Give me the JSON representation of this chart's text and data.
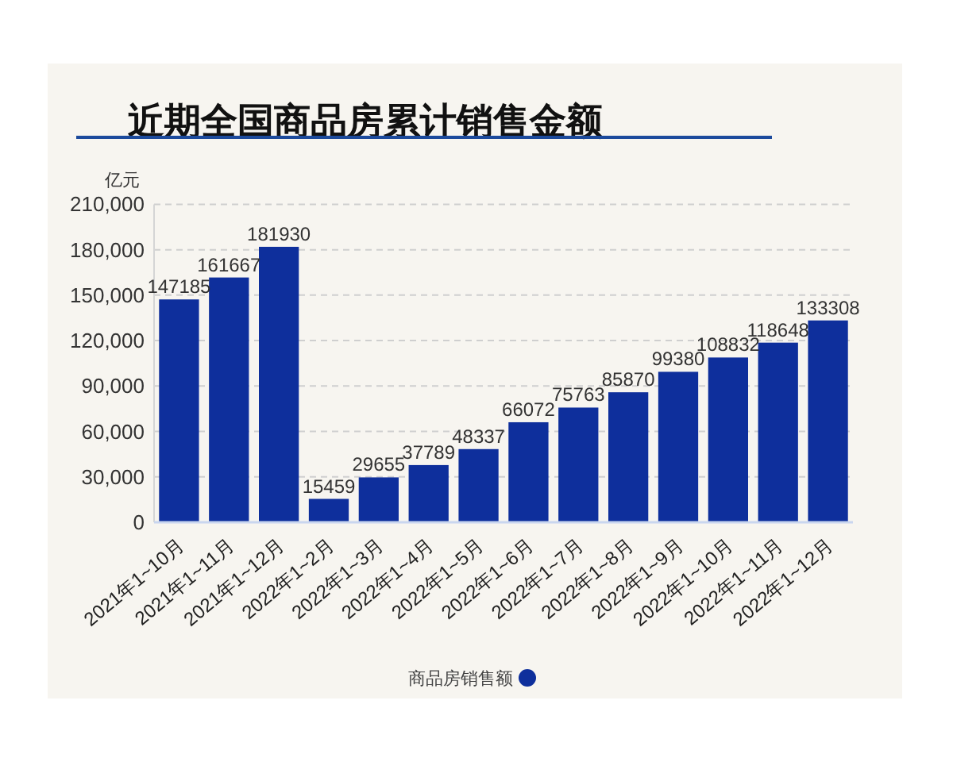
{
  "chart_data": {
    "type": "bar",
    "title": "近期全国商品房累计销售金额",
    "ylabel": "亿元",
    "categories": [
      "2021年1~10月",
      "2021年1~11月",
      "2021年1~12月",
      "2022年1~2月",
      "2022年1~3月",
      "2022年1~4月",
      "2022年1~5月",
      "2022年1~6月",
      "2022年1~7月",
      "2022年1~8月",
      "2022年1~9月",
      "2022年1~10月",
      "2022年1~11月",
      "2022年1~12月"
    ],
    "series": [
      {
        "name": "商品房销售额",
        "color": "#0e2f9c",
        "values": [
          147185,
          161667,
          181930,
          15459,
          29655,
          37789,
          48337,
          66072,
          75763,
          85870,
          99380,
          108832,
          118648,
          133308
        ]
      }
    ],
    "ylim": [
      0,
      210000
    ],
    "yticks": [
      0,
      {
        "value": 30000,
        "label": "30,000"
      },
      {
        "value": 60000,
        "label": "60,000"
      },
      {
        "value": 90000,
        "label": "90,000"
      },
      {
        "value": 120000,
        "label": "120,000"
      },
      {
        "value": 150000,
        "label": "150,000"
      },
      {
        "value": 180000,
        "label": "180,000"
      },
      {
        "value": 210000,
        "label": "210,000"
      }
    ],
    "grid": "y",
    "legend": "bottom",
    "data_labels": true
  }
}
